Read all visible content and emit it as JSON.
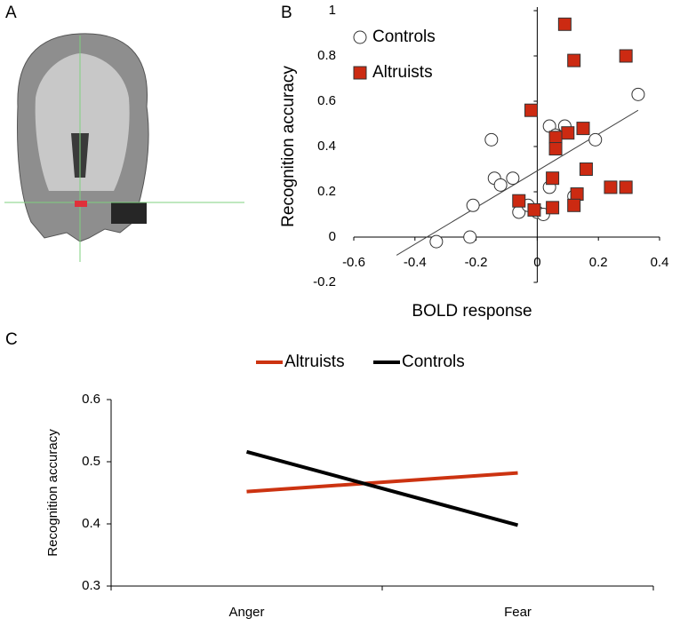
{
  "panel_labels": [
    "A",
    "B",
    "C"
  ],
  "chart_data": [
    {
      "type": "scatter",
      "xlabel": "BOLD response",
      "ylabel": "Recognition accuracy",
      "xlim": [
        -0.6,
        0.4
      ],
      "ylim": [
        -0.2,
        1
      ],
      "xticks": [
        -0.6,
        -0.4,
        -0.2,
        0,
        0.2,
        0.4
      ],
      "yticks": [
        -0.2,
        0,
        0.2,
        0.4,
        0.6,
        0.8,
        1
      ],
      "series": [
        {
          "name": "Controls",
          "color": "#ffffff",
          "marker": "circle",
          "x": [
            0.33,
            -0.15,
            0.19,
            0.04,
            0.09,
            0.06,
            -0.14,
            -0.12,
            -0.08,
            0.04,
            0.12,
            -0.21,
            -0.06,
            -0.03,
            0.0,
            0.02,
            -0.22,
            -0.33
          ],
          "y": [
            0.63,
            0.43,
            0.43,
            0.49,
            0.49,
            0.45,
            0.26,
            0.23,
            0.26,
            0.22,
            0.18,
            0.14,
            0.11,
            0.14,
            0.11,
            0.1,
            0.0,
            -0.02
          ]
        },
        {
          "name": "Altruists",
          "color": "#cc2a12",
          "marker": "square",
          "x": [
            0.09,
            0.12,
            0.29,
            -0.02,
            0.1,
            0.06,
            0.06,
            0.15,
            0.16,
            0.05,
            -0.06,
            0.13,
            0.12,
            0.05,
            -0.01,
            0.24,
            0.29
          ],
          "y": [
            0.94,
            0.78,
            0.8,
            0.56,
            0.46,
            0.44,
            0.39,
            0.48,
            0.3,
            0.26,
            0.16,
            0.19,
            0.14,
            0.13,
            0.12,
            0.22,
            0.22
          ]
        }
      ],
      "trend_line": {
        "x": [
          -0.46,
          0.33
        ],
        "y": [
          -0.08,
          0.56
        ]
      }
    },
    {
      "type": "line",
      "ylabel": "Recognition accuracy",
      "categories": [
        "Anger",
        "Fear"
      ],
      "ylim": [
        0.3,
        0.6
      ],
      "yticks": [
        0.3,
        0.4,
        0.5,
        0.6
      ],
      "series": [
        {
          "name": "Altruists",
          "color": "#cc3311",
          "values": [
            0.452,
            0.482
          ]
        },
        {
          "name": "Controls",
          "color": "#000000",
          "values": [
            0.516,
            0.398
          ]
        }
      ]
    }
  ]
}
